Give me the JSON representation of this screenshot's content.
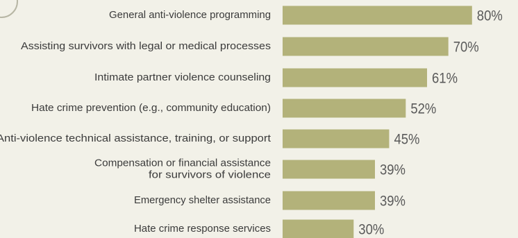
{
  "chart_data": {
    "type": "bar",
    "orientation": "horizontal",
    "categories": [
      [
        "General anti-violence programming"
      ],
      [
        "Assisting survivors with legal or medical processes"
      ],
      [
        "Intimate partner violence counseling"
      ],
      [
        "Hate crime prevention (e.g., community education)"
      ],
      [
        "Anti-violence technical assistance, training, or support"
      ],
      [
        "Compensation or financial assistance",
        "for survivors of violence"
      ],
      [
        "Emergency shelter assistance"
      ],
      [
        "Hate crime response services"
      ]
    ],
    "values": [
      80,
      70,
      61,
      52,
      45,
      39,
      39,
      30
    ],
    "value_labels": [
      "80%",
      "70%",
      "61%",
      "52%",
      "45%",
      "39%",
      "39%",
      "30%"
    ],
    "unit": "%",
    "bar_color": "#b3b27a",
    "grid": false,
    "legend": "none"
  }
}
